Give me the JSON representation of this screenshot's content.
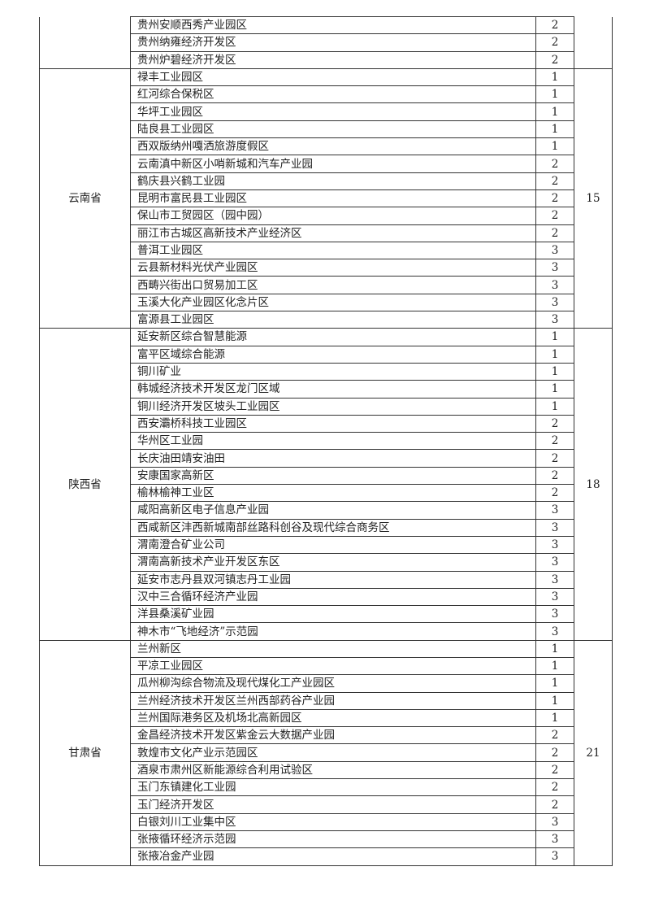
{
  "groups": [
    {
      "province": "",
      "count": "",
      "rows": [
        {
          "name": "贵州安顺西秀产业园区",
          "grade": "2"
        },
        {
          "name": "贵州纳雍经济开发区",
          "grade": "2"
        },
        {
          "name": "贵州炉碧经济开发区",
          "grade": "2"
        }
      ]
    },
    {
      "province": "云南省",
      "count": "15",
      "rows": [
        {
          "name": "禄丰工业园区",
          "grade": "1"
        },
        {
          "name": "红河综合保税区",
          "grade": "1"
        },
        {
          "name": "华坪工业园区",
          "grade": "1"
        },
        {
          "name": "陆良县工业园区",
          "grade": "1"
        },
        {
          "name": "西双版纳州嘎洒旅游度假区",
          "grade": "1"
        },
        {
          "name": "云南滇中新区小哨新城和汽车产业园",
          "grade": "2"
        },
        {
          "name": "鹤庆县兴鹤工业园",
          "grade": "2"
        },
        {
          "name": "昆明市富民县工业园区",
          "grade": "2"
        },
        {
          "name": "保山市工贸园区（园中园）",
          "grade": "2"
        },
        {
          "name": "丽江市古城区高新技术产业经济区",
          "grade": "2"
        },
        {
          "name": "普洱工业园区",
          "grade": "3"
        },
        {
          "name": "云县新材料光伏产业园区",
          "grade": "3"
        },
        {
          "name": "西畴兴街出口贸易加工区",
          "grade": "3"
        },
        {
          "name": "玉溪大化产业园区化念片区",
          "grade": "3"
        },
        {
          "name": "富源县工业园区",
          "grade": "3"
        }
      ]
    },
    {
      "province": "陕西省",
      "count": "18",
      "rows": [
        {
          "name": "延安新区综合智慧能源",
          "grade": "1"
        },
        {
          "name": "富平区域综合能源",
          "grade": "1"
        },
        {
          "name": "铜川矿业",
          "grade": "1"
        },
        {
          "name": "韩城经济技术开发区龙门区域",
          "grade": "1"
        },
        {
          "name": "铜川经济开发区坡头工业园区",
          "grade": "1"
        },
        {
          "name": "西安灞桥科技工业园区",
          "grade": "2"
        },
        {
          "name": "华州区工业园",
          "grade": "2"
        },
        {
          "name": "长庆油田靖安油田",
          "grade": "2"
        },
        {
          "name": "安康国家高新区",
          "grade": "2"
        },
        {
          "name": "榆林榆神工业区",
          "grade": "2"
        },
        {
          "name": "咸阳高新区电子信息产业园",
          "grade": "3"
        },
        {
          "name": "西咸新区沣西新城南部丝路科创谷及现代综合商务区",
          "grade": "3"
        },
        {
          "name": "渭南澄合矿业公司",
          "grade": "3"
        },
        {
          "name": "渭南高新技术产业开发区东区",
          "grade": "3"
        },
        {
          "name": "延安市志丹县双河镇志丹工业园",
          "grade": "3"
        },
        {
          "name": "汉中三合循环经济产业园",
          "grade": "3"
        },
        {
          "name": "洋县桑溪矿业园",
          "grade": "3"
        },
        {
          "name": "神木市“飞地经济”示范园",
          "grade": "3"
        }
      ]
    },
    {
      "province": "甘肃省",
      "count": "21",
      "rows": [
        {
          "name": "兰州新区",
          "grade": "1"
        },
        {
          "name": "平凉工业园区",
          "grade": "1"
        },
        {
          "name": "瓜州柳沟综合物流及现代煤化工产业园区",
          "grade": "1"
        },
        {
          "name": "兰州经济技术开发区兰州西部药谷产业园",
          "grade": "1"
        },
        {
          "name": "兰州国际港务区及机场北高新园区",
          "grade": "1"
        },
        {
          "name": "金昌经济技术开发区紫金云大数据产业园",
          "grade": "2"
        },
        {
          "name": "敦煌市文化产业示范园区",
          "grade": "2"
        },
        {
          "name": "酒泉市肃州区新能源综合利用试验区",
          "grade": "2"
        },
        {
          "name": "玉门东镇建化工业园",
          "grade": "2"
        },
        {
          "name": "玉门经济开发区",
          "grade": "2"
        },
        {
          "name": "白银刘川工业集中区",
          "grade": "3"
        },
        {
          "name": "张掖循环经济示范园",
          "grade": "3"
        },
        {
          "name": "张掖冶金产业园",
          "grade": "3"
        }
      ]
    }
  ]
}
